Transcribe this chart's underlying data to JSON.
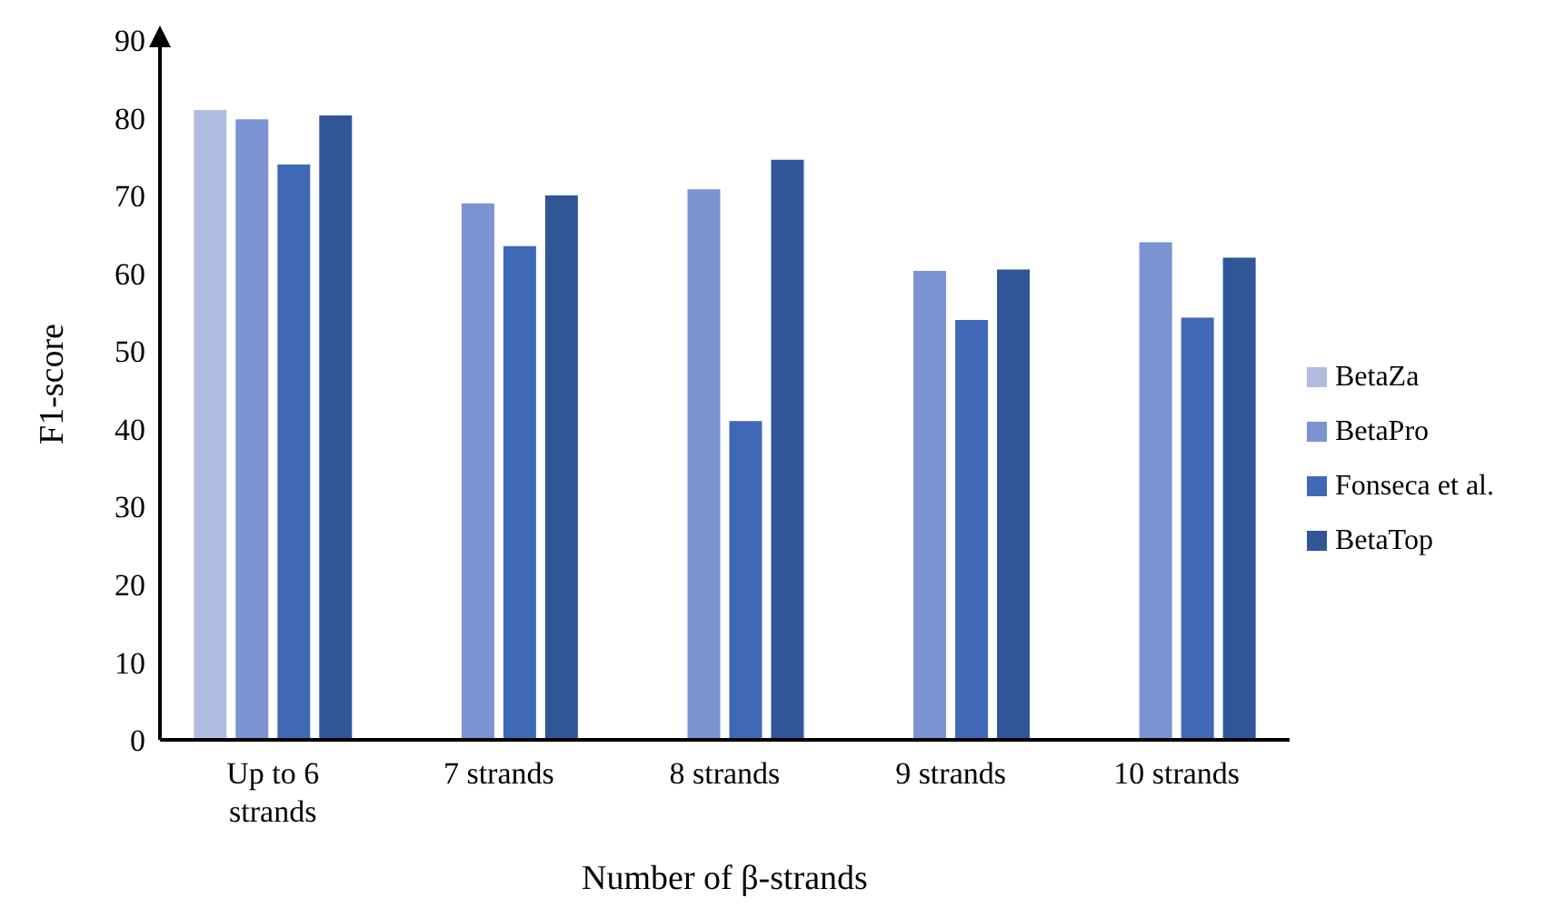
{
  "chart_data": {
    "type": "bar",
    "xlabel": "Number of β-strands",
    "ylabel": "F1-score",
    "categories": [
      "Up to 6 strands",
      "7 strands",
      "8 strands",
      "9 strands",
      "10 strands"
    ],
    "series": [
      {
        "name": "BetaZa",
        "color": "#b0bce0",
        "values": [
          81,
          null,
          null,
          null,
          null
        ]
      },
      {
        "name": "BetaPro",
        "color": "#7b93d0",
        "values": [
          79.8,
          69,
          70.8,
          60.3,
          64
        ]
      },
      {
        "name": "Fonseca et al.",
        "color": "#3f69b7",
        "values": [
          74,
          63.5,
          41,
          54,
          54.3
        ]
      },
      {
        "name": "BetaTop",
        "color": "#305697",
        "values": [
          80.3,
          70,
          74.6,
          60.5,
          62
        ]
      }
    ],
    "ylim": [
      0,
      90
    ],
    "yticks": [
      0,
      10,
      20,
      30,
      40,
      50,
      60,
      70,
      80,
      90
    ],
    "grid": false,
    "legend": "right"
  }
}
